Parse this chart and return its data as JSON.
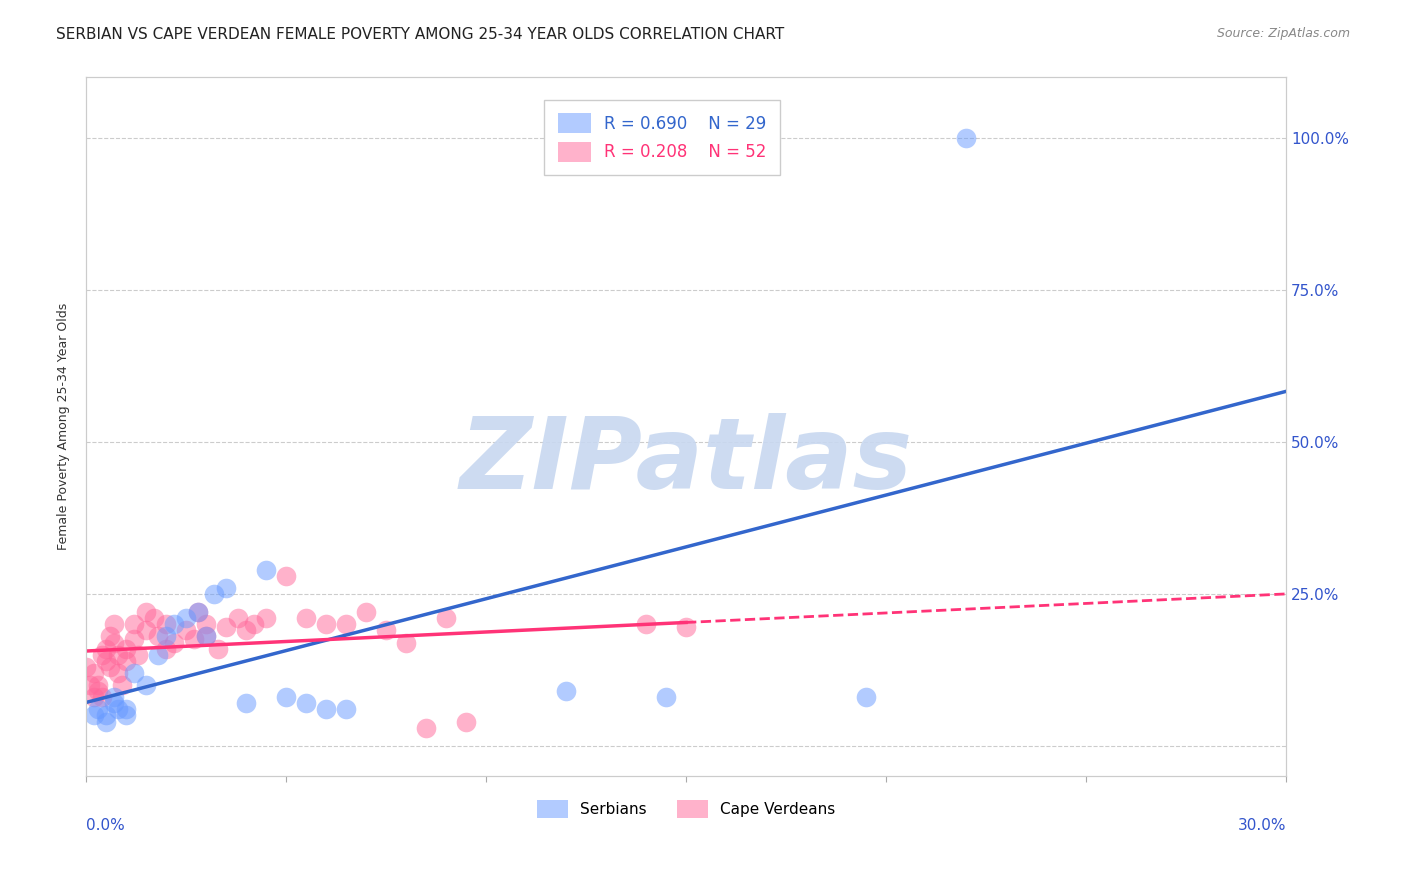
{
  "title": "SERBIAN VS CAPE VERDEAN FEMALE POVERTY AMONG 25-34 YEAR OLDS CORRELATION CHART",
  "source": "Source: ZipAtlas.com",
  "ylabel": "Female Poverty Among 25-34 Year Olds",
  "xlim": [
    0.0,
    0.3
  ],
  "ylim": [
    -0.05,
    1.1
  ],
  "yticks": [
    0.0,
    0.25,
    0.5,
    0.75,
    1.0
  ],
  "ytick_labels": [
    "",
    "25.0%",
    "50.0%",
    "75.0%",
    "100.0%"
  ],
  "xticks": [
    0.0,
    0.05,
    0.1,
    0.15,
    0.2,
    0.25,
    0.3
  ],
  "serbian_R": 0.69,
  "serbian_N": 29,
  "capeverdean_R": 0.208,
  "capeverdean_N": 52,
  "serbian_color": "#6699ff",
  "capeverdean_color": "#ff6699",
  "serbian_line_color": "#3366cc",
  "capeverdean_line_color": "#ff3377",
  "serbian_scatter": [
    [
      0.002,
      0.05
    ],
    [
      0.003,
      0.06
    ],
    [
      0.005,
      0.05
    ],
    [
      0.005,
      0.04
    ],
    [
      0.007,
      0.08
    ],
    [
      0.007,
      0.07
    ],
    [
      0.008,
      0.06
    ],
    [
      0.01,
      0.06
    ],
    [
      0.01,
      0.05
    ],
    [
      0.012,
      0.12
    ],
    [
      0.015,
      0.1
    ],
    [
      0.018,
      0.15
    ],
    [
      0.02,
      0.18
    ],
    [
      0.022,
      0.2
    ],
    [
      0.025,
      0.21
    ],
    [
      0.028,
      0.22
    ],
    [
      0.03,
      0.18
    ],
    [
      0.032,
      0.25
    ],
    [
      0.035,
      0.26
    ],
    [
      0.04,
      0.07
    ],
    [
      0.045,
      0.29
    ],
    [
      0.05,
      0.08
    ],
    [
      0.055,
      0.07
    ],
    [
      0.06,
      0.06
    ],
    [
      0.065,
      0.06
    ],
    [
      0.12,
      0.09
    ],
    [
      0.145,
      0.08
    ],
    [
      0.195,
      0.08
    ],
    [
      0.22,
      1.0
    ]
  ],
  "capeverdean_scatter": [
    [
      0.0,
      0.13
    ],
    [
      0.001,
      0.1
    ],
    [
      0.002,
      0.12
    ],
    [
      0.002,
      0.08
    ],
    [
      0.003,
      0.1
    ],
    [
      0.003,
      0.09
    ],
    [
      0.004,
      0.15
    ],
    [
      0.004,
      0.08
    ],
    [
      0.005,
      0.16
    ],
    [
      0.005,
      0.14
    ],
    [
      0.006,
      0.18
    ],
    [
      0.006,
      0.13
    ],
    [
      0.007,
      0.17
    ],
    [
      0.007,
      0.2
    ],
    [
      0.008,
      0.15
    ],
    [
      0.008,
      0.12
    ],
    [
      0.009,
      0.1
    ],
    [
      0.01,
      0.16
    ],
    [
      0.01,
      0.14
    ],
    [
      0.012,
      0.2
    ],
    [
      0.012,
      0.175
    ],
    [
      0.013,
      0.15
    ],
    [
      0.015,
      0.22
    ],
    [
      0.015,
      0.19
    ],
    [
      0.017,
      0.21
    ],
    [
      0.018,
      0.18
    ],
    [
      0.02,
      0.2
    ],
    [
      0.02,
      0.16
    ],
    [
      0.022,
      0.17
    ],
    [
      0.025,
      0.19
    ],
    [
      0.027,
      0.175
    ],
    [
      0.028,
      0.22
    ],
    [
      0.03,
      0.2
    ],
    [
      0.03,
      0.18
    ],
    [
      0.033,
      0.16
    ],
    [
      0.035,
      0.195
    ],
    [
      0.038,
      0.21
    ],
    [
      0.04,
      0.19
    ],
    [
      0.042,
      0.2
    ],
    [
      0.045,
      0.21
    ],
    [
      0.05,
      0.28
    ],
    [
      0.055,
      0.21
    ],
    [
      0.06,
      0.2
    ],
    [
      0.065,
      0.2
    ],
    [
      0.07,
      0.22
    ],
    [
      0.075,
      0.19
    ],
    [
      0.08,
      0.17
    ],
    [
      0.085,
      0.03
    ],
    [
      0.09,
      0.21
    ],
    [
      0.095,
      0.04
    ],
    [
      0.14,
      0.2
    ],
    [
      0.15,
      0.195
    ]
  ],
  "watermark": "ZIPatlas",
  "watermark_color": "#c8d8f0",
  "background_color": "#ffffff",
  "title_fontsize": 11,
  "legend_fontsize": 11
}
